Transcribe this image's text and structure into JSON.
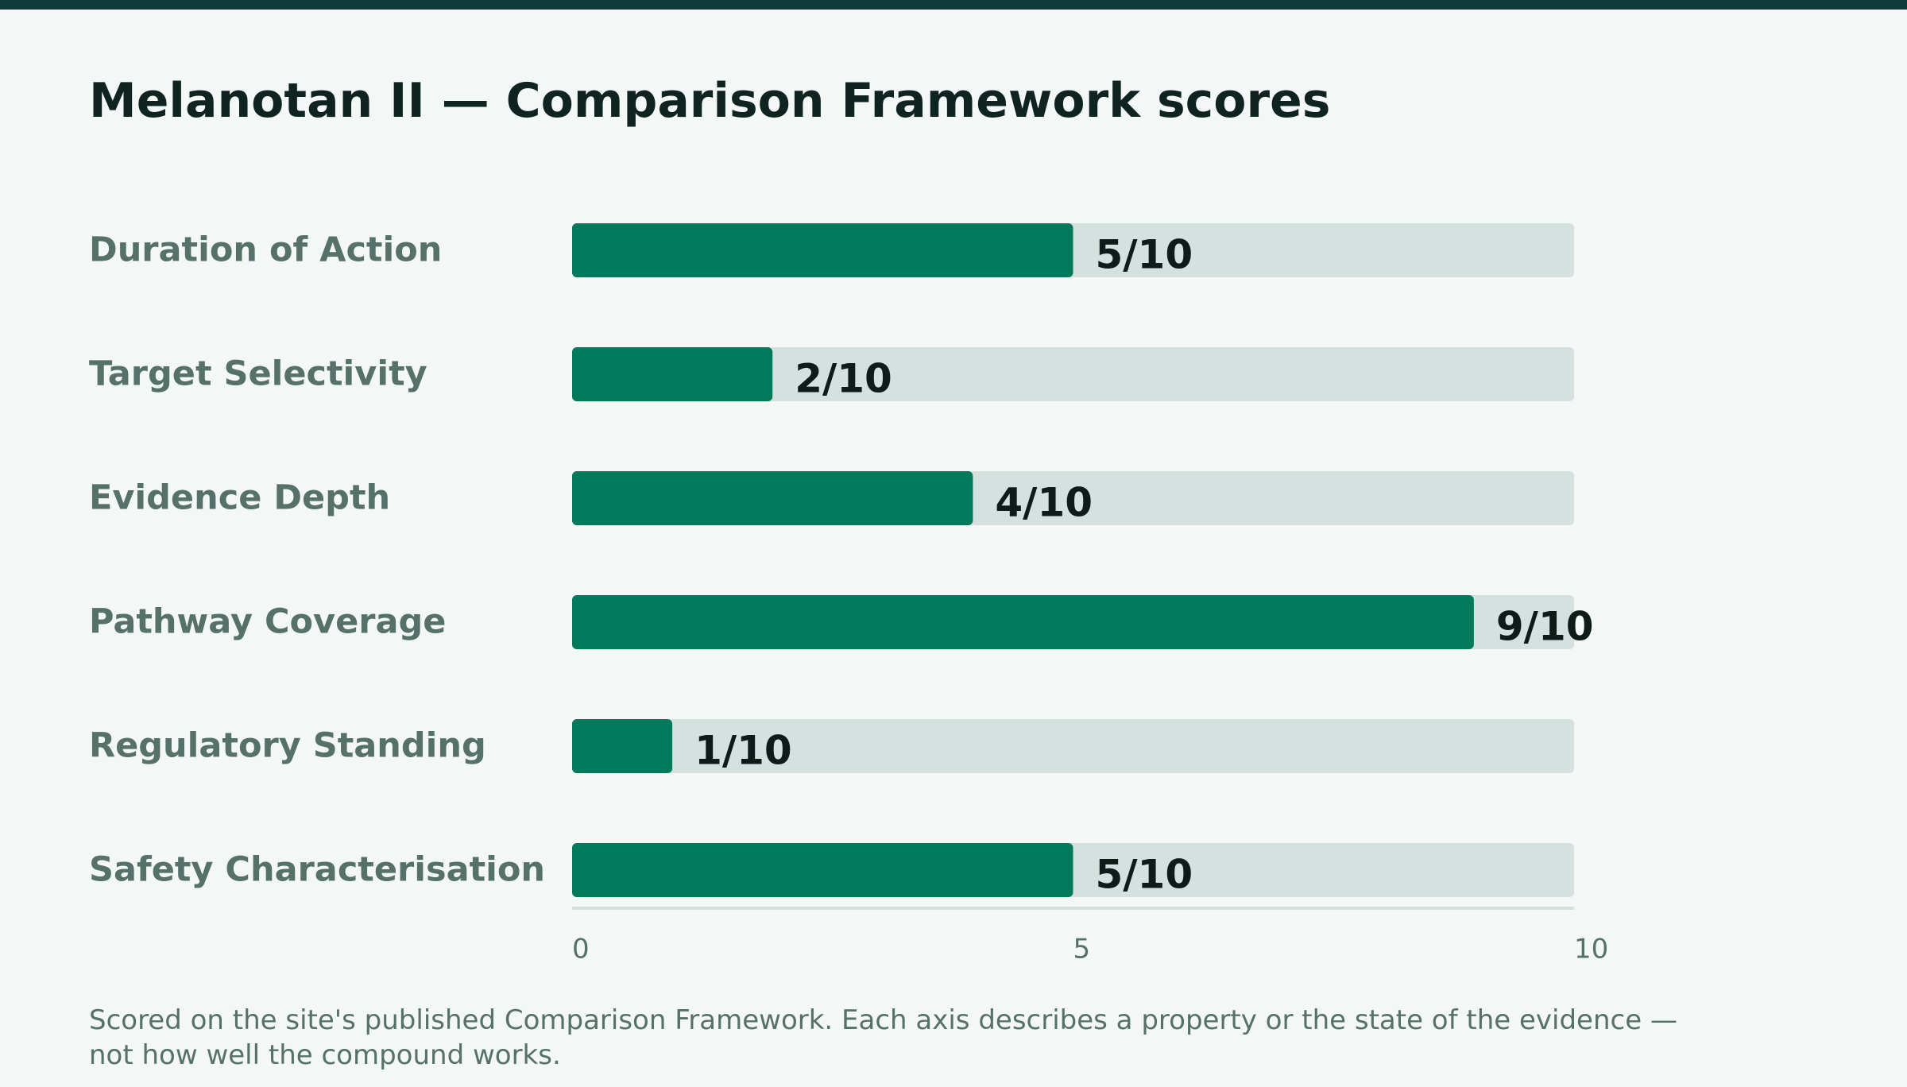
{
  "page": {
    "title": "Melanotan II — Comparison Framework scores",
    "footnote": "Scored on the site's published Comparison Framework. Each axis describes a property or the state of the evidence — not how well the compound works."
  },
  "colors": {
    "stripe": "#0e3b3a",
    "background": "#f3f7f5",
    "bar_fill": "#007a5a",
    "bar_track": "#d5e1de",
    "title_text": "#0f2420",
    "label_text": "#56706a",
    "value_text": "#0f1b18",
    "axis_line": "#d5e1de",
    "tick_text": "#56706a",
    "footnote_text": "#56706a"
  },
  "chart_data": {
    "type": "bar",
    "orientation": "horizontal",
    "title": "Melanotan II — Comparison Framework scores",
    "categories": [
      "Duration of Action",
      "Target Selectivity",
      "Evidence Depth",
      "Pathway Coverage",
      "Regulatory Standing",
      "Safety Characterisation"
    ],
    "values": [
      5,
      2,
      4,
      9,
      1,
      5
    ],
    "max": 10,
    "value_labels": [
      "5/10",
      "2/10",
      "4/10",
      "9/10",
      "1/10",
      "5/10"
    ],
    "xlim": [
      0,
      10
    ],
    "ticks": [
      0,
      5,
      10
    ],
    "tick_labels": [
      "0",
      "5",
      "10"
    ],
    "grid": false,
    "legend": "none"
  }
}
